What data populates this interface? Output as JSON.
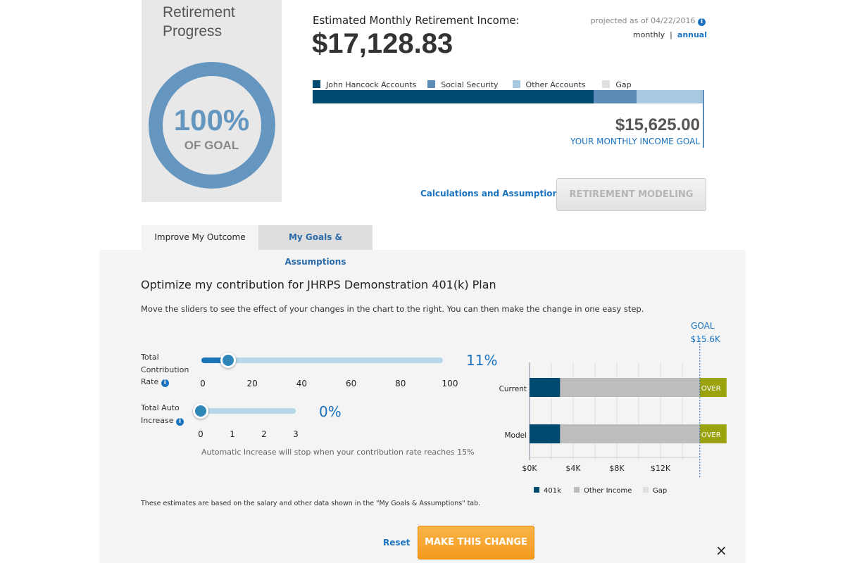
{
  "progress": {
    "title_line1": "Retirement",
    "title_line2": "Progress",
    "percent": "100%",
    "subtitle": "OF GOAL",
    "ring_color": "#6596c0"
  },
  "summary": {
    "heading": "Estimated Monthly Retirement Income:",
    "amount": "$17,128.83",
    "projected": "projected as of 04/22/2016",
    "toggle_monthly": "monthly",
    "toggle_sep": "|",
    "toggle_annual": "annual",
    "legend": [
      {
        "label": "John Hancock Accounts",
        "color": "#004a70"
      },
      {
        "label": "Social Security",
        "color": "#5b8db8"
      },
      {
        "label": "Other Accounts",
        "color": "#a6c8e0"
      },
      {
        "label": "Gap",
        "color": "#e0e0e0"
      }
    ],
    "bar_shares": [
      0.72,
      0.11,
      0.17,
      0
    ],
    "goal_amount": "$15,625.00",
    "goal_label": "YOUR MONTHLY INCOME GOAL"
  },
  "links": {
    "calculations": "Calculations and Assumptions »",
    "modeling": "RETIREMENT MODELING"
  },
  "tabs": [
    {
      "label": "Improve My Outcome",
      "active": true
    },
    {
      "label": "My Goals & Assumptions",
      "active": false
    }
  ],
  "optimize": {
    "heading": "Optimize my contribution for JHRPS Demonstration 401(k) Plan",
    "instructions": "Move the sliders to see the effect of your changes in the chart to the right. You can then make the change in one easy step.",
    "contribution": {
      "label1": "Total",
      "label2": "Contribution",
      "label3": "Rate",
      "value": 11,
      "display": "11%",
      "min": 0,
      "max": 100,
      "ticks": [
        "0",
        "20",
        "40",
        "60",
        "80",
        "100"
      ]
    },
    "auto_increase": {
      "label1": "Total Auto",
      "label2": "Increase",
      "value": 0,
      "display": "0%",
      "min": 0,
      "max": 3,
      "ticks": [
        "0",
        "1",
        "2",
        "3"
      ],
      "note": "Automatic Increase will stop when your contribution rate reaches 15%"
    },
    "footnote": "These estimates are based on the salary and other data shown in the \"My Goals & Assumptions\" tab.",
    "reset": "Reset",
    "make_change": "MAKE THIS CHANGE",
    "close": "×"
  },
  "chart_data": {
    "type": "bar",
    "orientation": "horizontal",
    "stacked": true,
    "categories": [
      "Current",
      "Model"
    ],
    "series": [
      {
        "name": "401k",
        "values": [
          2.8,
          2.8
        ],
        "color": "#004a70"
      },
      {
        "name": "Other Income",
        "values": [
          12.8,
          12.8
        ],
        "color": "#bdbdbd"
      },
      {
        "name": "Gap",
        "values": [
          0,
          0
        ],
        "color": "#e0e0e0"
      }
    ],
    "over_label": "OVER",
    "over_color": "#9aa30e",
    "goal": {
      "label": "GOAL",
      "value_label": "$15.6K",
      "value": 15.6
    },
    "xlim": [
      0,
      15.6
    ],
    "xticks": [
      "$0K",
      "$4K",
      "$8K",
      "$12K"
    ],
    "xtick_values": [
      0,
      4,
      8,
      12
    ],
    "grid": true,
    "legend_position": "bottom"
  }
}
